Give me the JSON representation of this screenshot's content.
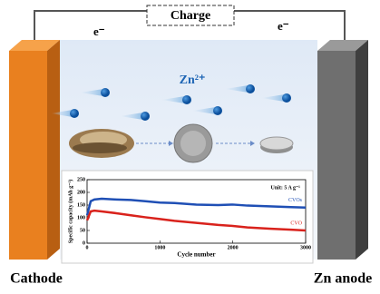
{
  "labels": {
    "charge": "Charge",
    "electron_left": "e⁻",
    "electron_right": "e⁻",
    "zn_ion": "Zn²⁺",
    "cathode": "Cathode",
    "anode": "Zn anode"
  },
  "inset_chart": {
    "type": "line",
    "unit_note": "Unit: 5 A g⁻¹",
    "x_label": "Cycle number",
    "y_label": "Specific capacity (mAh g⁻¹)",
    "xlim": [
      0,
      3000
    ],
    "xticks": [
      0,
      1000,
      2000,
      3000
    ],
    "ylim": [
      0,
      250
    ],
    "yticks": [
      0,
      50,
      100,
      150,
      200,
      250
    ],
    "x": [
      1,
      50,
      100,
      200,
      400,
      600,
      800,
      1000,
      1200,
      1500,
      1800,
      2000,
      2200,
      2500,
      2800,
      3000
    ],
    "series": [
      {
        "name": "CVOs",
        "color": "#1f4fb5",
        "values": [
          110,
          165,
          172,
          175,
          172,
          170,
          165,
          160,
          158,
          152,
          150,
          152,
          148,
          145,
          142,
          140
        ]
      },
      {
        "name": "CVO",
        "color": "#d9221c",
        "values": [
          90,
          125,
          128,
          125,
          118,
          110,
          102,
          95,
          88,
          80,
          72,
          68,
          62,
          57,
          53,
          50
        ]
      }
    ]
  }
}
